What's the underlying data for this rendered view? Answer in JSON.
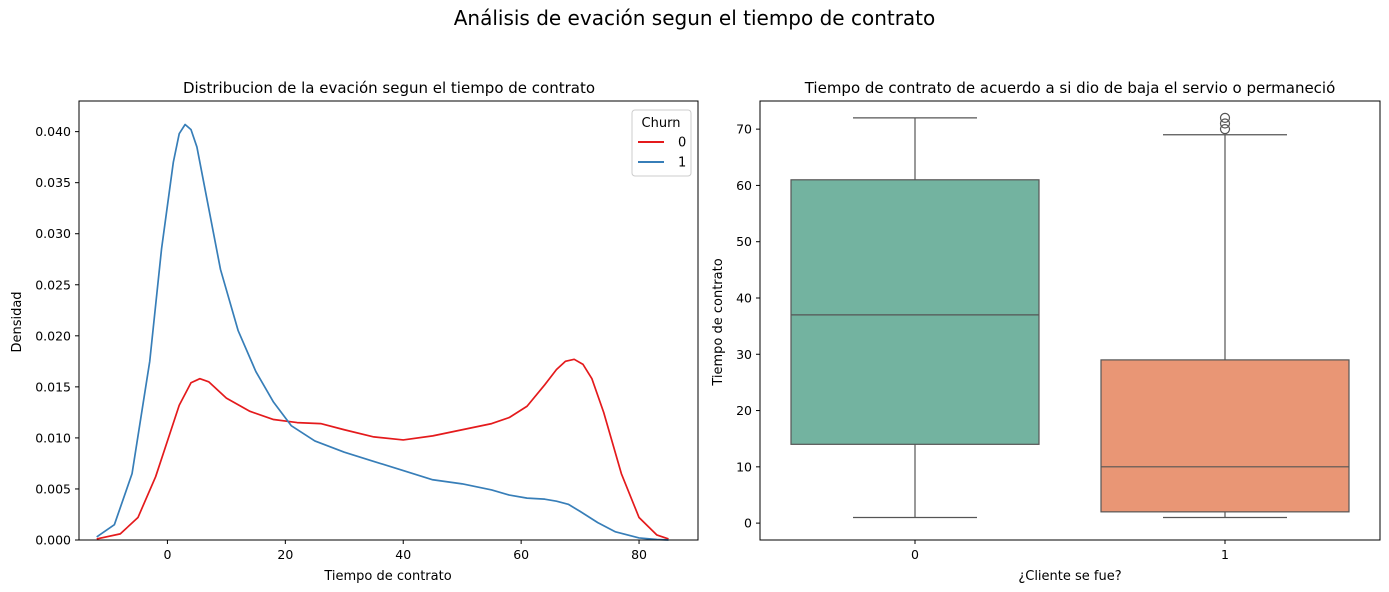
{
  "figure": {
    "suptitle": "Análisis de evación segun el tiempo de contrato"
  },
  "chart_data": [
    {
      "type": "line",
      "title": "Distribucion de la evación segun el tiempo de contrato",
      "xlabel": "Tiempo de contrato",
      "ylabel": "Densidad",
      "xlim": [
        -15,
        90
      ],
      "ylim": [
        0,
        0.043
      ],
      "xticks": [
        0,
        20,
        40,
        60,
        80
      ],
      "yticks": [
        0.0,
        0.005,
        0.01,
        0.015,
        0.02,
        0.025,
        0.03,
        0.035,
        0.04
      ],
      "ytick_labels": [
        "0.000",
        "0.005",
        "0.010",
        "0.015",
        "0.020",
        "0.025",
        "0.030",
        "0.035",
        "0.040"
      ],
      "legend": {
        "title": "Churn",
        "placement": "top-right"
      },
      "series": [
        {
          "name": "0",
          "color": "#e41a1c",
          "x": [
            -12,
            -8,
            -5,
            -2,
            0,
            2,
            4,
            5.5,
            7,
            10,
            14,
            18,
            22,
            26,
            30,
            35,
            40,
            45,
            50,
            55,
            58,
            61,
            64,
            66,
            67.5,
            69,
            70.5,
            72,
            74,
            77,
            80,
            83,
            85
          ],
          "y": [
            0.0001,
            0.0006,
            0.0022,
            0.0062,
            0.0097,
            0.0132,
            0.0154,
            0.0158,
            0.0155,
            0.0139,
            0.0126,
            0.0118,
            0.0115,
            0.0114,
            0.0108,
            0.0101,
            0.0098,
            0.0102,
            0.0108,
            0.0114,
            0.012,
            0.0131,
            0.0152,
            0.0167,
            0.0175,
            0.0177,
            0.0172,
            0.0158,
            0.0125,
            0.0065,
            0.0022,
            0.0005,
            0.0001
          ]
        },
        {
          "name": "1",
          "color": "#377eb8",
          "x": [
            -12,
            -9,
            -6,
            -3,
            -1,
            1,
            2,
            3,
            4,
            5,
            7,
            9,
            12,
            15,
            18,
            21,
            25,
            30,
            35,
            40,
            45,
            50,
            55,
            58,
            61,
            64,
            66,
            68,
            70,
            73,
            76,
            80,
            83,
            85
          ],
          "y": [
            0.0003,
            0.0015,
            0.0065,
            0.0175,
            0.0285,
            0.037,
            0.0398,
            0.0407,
            0.0402,
            0.0385,
            0.0325,
            0.0265,
            0.0205,
            0.0165,
            0.0135,
            0.0112,
            0.0097,
            0.0086,
            0.0077,
            0.0068,
            0.0059,
            0.0055,
            0.0049,
            0.0044,
            0.0041,
            0.004,
            0.0038,
            0.0035,
            0.0028,
            0.0017,
            0.0008,
            0.0002,
            5e-05,
            0.0
          ]
        }
      ]
    },
    {
      "type": "box",
      "title": "Tiempo de contrato de acuerdo a si dio de baja el servio o permaneció",
      "xlabel": "¿Cliente se fue?",
      "ylabel": "Tiempo de contrato",
      "ylim": [
        -3,
        75
      ],
      "yticks": [
        0,
        10,
        20,
        30,
        40,
        50,
        60,
        70
      ],
      "categories": [
        "0",
        "1"
      ],
      "boxes": [
        {
          "name": "0",
          "color": "#73b3a0",
          "whisker_low": 1,
          "q1": 14,
          "median": 37,
          "q3": 61,
          "whisker_high": 72,
          "outliers": []
        },
        {
          "name": "1",
          "color": "#e99675",
          "whisker_low": 1,
          "q1": 2,
          "median": 10,
          "q3": 29,
          "whisker_high": 69,
          "outliers": [
            70,
            71,
            72
          ]
        }
      ]
    }
  ]
}
